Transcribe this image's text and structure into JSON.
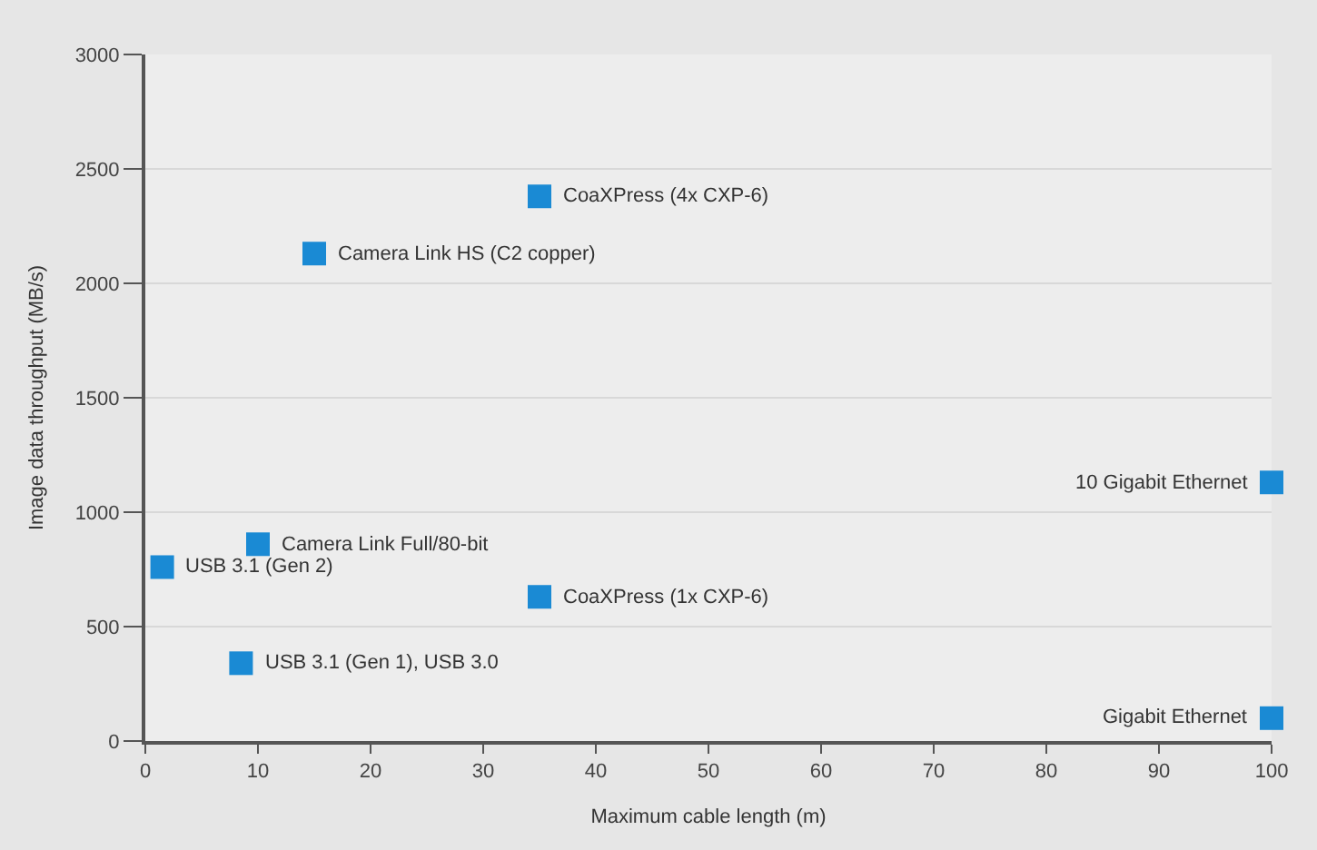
{
  "chart_data": {
    "type": "scatter",
    "xlabel": "Maximum cable length (m)",
    "ylabel": "Image data throughput (MB/s)",
    "x": [
      35,
      15,
      10,
      1.5,
      35,
      8.5,
      100,
      100
    ],
    "series": [
      {
        "color": "#1a8ad4",
        "values": [
          2380,
          2130,
          860,
          760,
          630,
          340,
          1130,
          100
        ]
      }
    ],
    "xlim": [
      0,
      100
    ],
    "xticks": [
      0,
      10,
      20,
      30,
      40,
      50,
      60,
      70,
      80,
      90,
      100
    ],
    "ylim": [
      0,
      3000
    ],
    "yticks": [
      0,
      500,
      1000,
      1500,
      2000,
      2500,
      3000
    ],
    "grid": "y",
    "marker": "square",
    "annotations": [
      {
        "text": "CoaXPress (4x CXP-6)",
        "x": 35,
        "y": 2380
      },
      {
        "text": "Camera Link HS (C2 copper)",
        "x": 15,
        "y": 2130
      },
      {
        "text": "Camera Link Full/80-bit",
        "x": 10,
        "y": 860
      },
      {
        "text": "USB 3.1 (Gen 2)",
        "x": 1.5,
        "y": 760
      },
      {
        "text": "CoaXPress (1x CXP-6)",
        "x": 35,
        "y": 630
      },
      {
        "text": "USB 3.1 (Gen 1), USB 3.0",
        "x": 8.5,
        "y": 340
      },
      {
        "text": "10 Gigabit Ethernet",
        "x": 100,
        "y": 1130
      },
      {
        "text": "Gigabit Ethernet",
        "x": 100,
        "y": 100
      }
    ]
  }
}
